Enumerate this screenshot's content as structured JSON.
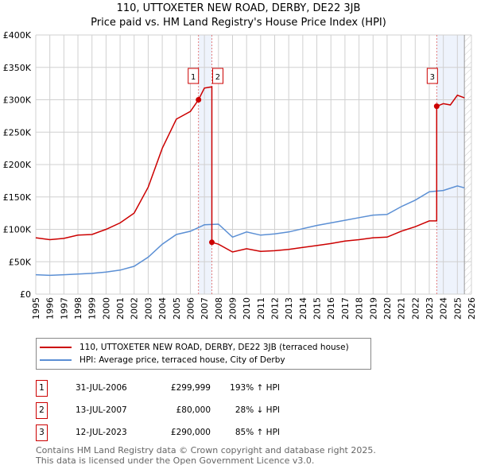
{
  "chart_data": {
    "type": "line",
    "title": "110, UTTOXETER NEW ROAD, DERBY, DE22 3JB",
    "subtitle": "Price paid vs. HM Land Registry's House Price Index (HPI)",
    "xlim": [
      1995,
      2026
    ],
    "ylim": [
      0,
      400000
    ],
    "yticks": [
      {
        "v": 0,
        "label": "£0"
      },
      {
        "v": 50000,
        "label": "£50K"
      },
      {
        "v": 100000,
        "label": "£100K"
      },
      {
        "v": 150000,
        "label": "£150K"
      },
      {
        "v": 200000,
        "label": "£200K"
      },
      {
        "v": 250000,
        "label": "£250K"
      },
      {
        "v": 300000,
        "label": "£300K"
      },
      {
        "v": 350000,
        "label": "£350K"
      },
      {
        "v": 400000,
        "label": "£400K"
      }
    ],
    "xticks": [
      "1995",
      "1996",
      "1997",
      "1998",
      "1999",
      "2000",
      "2001",
      "2002",
      "2003",
      "2004",
      "2005",
      "2006",
      "2007",
      "2008",
      "2009",
      "2010",
      "2011",
      "2012",
      "2013",
      "2014",
      "2015",
      "2016",
      "2017",
      "2018",
      "2019",
      "2020",
      "2021",
      "2022",
      "2023",
      "2024",
      "2025",
      "2026"
    ],
    "grid": true,
    "series": [
      {
        "name": "110, UTTOXETER NEW ROAD, DERBY, DE22 3JB (terraced house)",
        "color": "#cc0000",
        "x": [
          1995,
          1996,
          1997,
          1998,
          1999,
          2000,
          2001,
          2002,
          2003,
          2004,
          2005,
          2006,
          2006.58,
          2007,
          2007.53,
          2007.53,
          2008,
          2009,
          2010,
          2011,
          2012,
          2013,
          2014,
          2015,
          2016,
          2017,
          2018,
          2019,
          2020,
          2021,
          2022,
          2023,
          2023.53,
          2023.53,
          2024,
          2024.5,
          2025,
          2025.5
        ],
        "y": [
          87000,
          84000,
          86000,
          91000,
          92000,
          100000,
          110000,
          125000,
          165000,
          225000,
          270000,
          282000,
          300000,
          318000,
          320000,
          80000,
          77000,
          65000,
          70000,
          66000,
          67000,
          69000,
          72000,
          75000,
          78000,
          82000,
          84000,
          87000,
          88000,
          97000,
          104000,
          113000,
          113000,
          290000,
          294000,
          292000,
          307000,
          303000
        ]
      },
      {
        "name": "HPI: Average price, terraced house, City of Derby",
        "color": "#5b8fd4",
        "x": [
          1995,
          1996,
          1997,
          1998,
          1999,
          2000,
          2001,
          2002,
          2003,
          2004,
          2005,
          2006,
          2007,
          2008,
          2009,
          2010,
          2011,
          2012,
          2013,
          2014,
          2015,
          2016,
          2017,
          2018,
          2019,
          2020,
          2021,
          2022,
          2023,
          2024,
          2025,
          2025.5
        ],
        "y": [
          30000,
          29000,
          30000,
          31000,
          32000,
          34000,
          37000,
          43000,
          57000,
          77000,
          92000,
          97000,
          107000,
          108000,
          88000,
          96000,
          91000,
          93000,
          96000,
          101000,
          106000,
          110000,
          114000,
          118000,
          122000,
          123000,
          135000,
          145000,
          158000,
          160000,
          167000,
          164000
        ]
      }
    ],
    "sales": [
      {
        "n": "1",
        "date": "31-JUL-2006",
        "price": "£299,999",
        "hpi": "193% ↑ HPI",
        "x": 2006.58,
        "y": 299999
      },
      {
        "n": "2",
        "date": "13-JUL-2007",
        "price": "£80,000",
        "hpi": "28% ↓ HPI",
        "x": 2007.53,
        "y": 80000
      },
      {
        "n": "3",
        "date": "12-JUL-2023",
        "price": "£290,000",
        "hpi": "85% ↑ HPI",
        "x": 2023.53,
        "y": 290000
      }
    ],
    "shaded": [
      [
        2006.58,
        2007.53
      ],
      [
        2023.53,
        2025.5
      ]
    ]
  },
  "footer": {
    "line1": "Contains HM Land Registry data © Crown copyright and database right 2025.",
    "line2": "This data is licensed under the Open Government Licence v3.0."
  }
}
